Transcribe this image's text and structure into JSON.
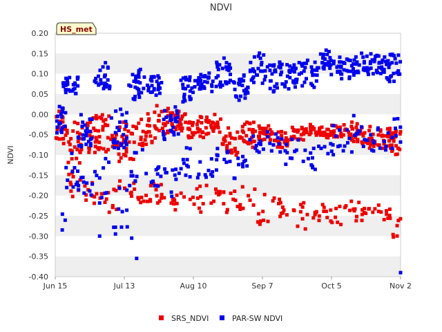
{
  "chart_data": {
    "type": "scatter",
    "title": "NDVI",
    "xlabel": "",
    "ylabel": "NDVI",
    "badge": "HS_met",
    "ylim": [
      -0.4,
      0.2
    ],
    "yticks": [
      0.2,
      0.15,
      0.1,
      0.05,
      0.0,
      -0.05,
      -0.1,
      -0.15,
      -0.2,
      -0.25,
      -0.3,
      -0.35,
      -0.4
    ],
    "ytick_labels": [
      "0.20",
      "0.15",
      "0.10",
      "0.05",
      "0.00",
      "-0.05",
      "-0.10",
      "-0.15",
      "-0.20",
      "-0.25",
      "-0.30",
      "-0.35",
      "-0.40"
    ],
    "xlim_days": [
      0,
      140
    ],
    "xticks_days": [
      0,
      28,
      56,
      84,
      112,
      140
    ],
    "xtick_labels": [
      "Jun 15",
      "Jul 13",
      "Aug 10",
      "Sep 7",
      "Oct 5",
      "Nov 2"
    ],
    "grid": "horizontal alternating bands",
    "legend_position": "bottom-center",
    "series": [
      {
        "name": "SRS_NDVI",
        "color": "#ee0000",
        "clusters": [
          {
            "day": 1,
            "upper": [
              0.02,
              -0.08
            ],
            "lower": null
          },
          {
            "day": 8,
            "upper": [
              0.0,
              -0.12
            ],
            "lower": [
              -0.14,
              -0.2
            ]
          },
          {
            "day": 15,
            "upper": [
              0.0,
              -0.1
            ],
            "lower": [
              -0.16,
              -0.22
            ]
          },
          {
            "day": 22,
            "upper": [
              0.0,
              -0.1
            ],
            "lower": [
              -0.18,
              -0.24
            ]
          },
          {
            "day": 29,
            "upper": [
              0.0,
              -0.12
            ],
            "lower": [
              -0.15,
              -0.21
            ]
          },
          {
            "day": 36,
            "upper": [
              0.0,
              -0.08
            ],
            "lower": [
              -0.18,
              -0.22
            ]
          },
          {
            "day": 43,
            "upper": [
              0.02,
              -0.06
            ],
            "lower": [
              -0.17,
              -0.22
            ]
          },
          {
            "day": 50,
            "upper": [
              0.01,
              -0.04
            ],
            "lower": [
              -0.18,
              -0.24
            ]
          },
          {
            "day": 57,
            "upper": [
              0.0,
              -0.06
            ],
            "lower": [
              -0.16,
              -0.24
            ]
          },
          {
            "day": 64,
            "upper": [
              0.0,
              -0.05
            ],
            "lower": [
              -0.16,
              -0.22
            ]
          },
          {
            "day": 71,
            "upper": [
              -0.02,
              -0.1
            ],
            "lower": [
              -0.18,
              -0.24
            ]
          },
          {
            "day": 78,
            "upper": [
              -0.02,
              -0.08
            ],
            "lower": [
              -0.18,
              -0.24
            ]
          },
          {
            "day": 85,
            "upper": [
              -0.03,
              -0.06
            ],
            "lower": [
              -0.2,
              -0.27
            ]
          },
          {
            "day": 92,
            "upper": [
              -0.04,
              -0.08
            ],
            "lower": [
              -0.2,
              -0.26
            ]
          },
          {
            "day": 99,
            "upper": [
              -0.03,
              -0.06
            ],
            "lower": [
              -0.22,
              -0.28
            ]
          },
          {
            "day": 106,
            "upper": [
              -0.03,
              -0.05
            ],
            "lower": [
              -0.22,
              -0.26
            ]
          },
          {
            "day": 113,
            "upper": [
              -0.03,
              -0.06
            ],
            "lower": [
              -0.22,
              -0.27
            ]
          },
          {
            "day": 120,
            "upper": [
              -0.02,
              -0.07
            ],
            "lower": [
              -0.2,
              -0.26
            ]
          },
          {
            "day": 127,
            "upper": [
              -0.03,
              -0.08
            ],
            "lower": [
              -0.22,
              -0.27
            ]
          },
          {
            "day": 134,
            "upper": [
              -0.03,
              -0.08
            ],
            "lower": [
              -0.22,
              -0.26
            ]
          },
          {
            "day": 139,
            "upper": [
              -0.04,
              -0.1
            ],
            "lower": [
              -0.24,
              -0.3
            ]
          }
        ]
      },
      {
        "name": "PAR-SW NDVI",
        "color": "#0000ee",
        "clusters": [
          {
            "day": 1,
            "upper": [
              0.02,
              -0.05
            ],
            "lower": [
              -0.22,
              -0.28
            ]
          },
          {
            "day": 6,
            "upper": [
              0.1,
              0.05
            ],
            "lower": [
              -0.1,
              -0.18
            ]
          },
          {
            "day": 12,
            "upper": [
              0.01,
              -0.08
            ],
            "lower": [
              -0.12,
              -0.2
            ]
          },
          {
            "day": 19,
            "upper": [
              0.13,
              0.06
            ],
            "lower": [
              -0.1,
              -0.22
            ]
          },
          {
            "day": 26,
            "upper": [
              0.02,
              -0.08
            ],
            "lower": [
              -0.14,
              -0.3
            ]
          },
          {
            "day": 33,
            "upper": [
              0.11,
              0.04
            ],
            "lower": [
              -0.08,
              -0.2
            ]
          },
          {
            "day": 40,
            "upper": [
              0.1,
              0.05
            ],
            "lower": [
              -0.1,
              -0.18
            ]
          },
          {
            "day": 47,
            "upper": [
              0.02,
              -0.06
            ],
            "lower": [
              -0.12,
              -0.2
            ]
          },
          {
            "day": 54,
            "upper": [
              0.1,
              0.03
            ],
            "lower": [
              -0.08,
              -0.16
            ]
          },
          {
            "day": 61,
            "upper": [
              0.11,
              0.06
            ],
            "lower": [
              -0.1,
              -0.18
            ]
          },
          {
            "day": 68,
            "upper": [
              0.14,
              0.06
            ],
            "lower": [
              -0.05,
              -0.14
            ]
          },
          {
            "day": 75,
            "upper": [
              0.1,
              0.04
            ],
            "lower": [
              -0.08,
              -0.16
            ]
          },
          {
            "day": 82,
            "upper": [
              0.15,
              0.08
            ],
            "lower": [
              -0.04,
              -0.1
            ]
          },
          {
            "day": 89,
            "upper": [
              0.13,
              0.06
            ],
            "lower": [
              -0.04,
              -0.1
            ]
          },
          {
            "day": 96,
            "upper": [
              0.14,
              0.06
            ],
            "lower": [
              -0.05,
              -0.12
            ]
          },
          {
            "day": 103,
            "upper": [
              0.13,
              0.07
            ],
            "lower": [
              -0.08,
              -0.14
            ]
          },
          {
            "day": 110,
            "upper": [
              0.16,
              0.1
            ],
            "lower": [
              -0.02,
              -0.1
            ]
          },
          {
            "day": 117,
            "upper": [
              0.14,
              0.08
            ],
            "lower": [
              -0.03,
              -0.1
            ]
          },
          {
            "day": 124,
            "upper": [
              0.15,
              0.1
            ],
            "lower": [
              0.0,
              -0.08
            ]
          },
          {
            "day": 131,
            "upper": [
              0.15,
              0.1
            ],
            "lower": [
              -0.03,
              -0.1
            ]
          },
          {
            "day": 137,
            "upper": [
              0.16,
              0.08
            ],
            "lower": [
              0.0,
              -0.1
            ]
          }
        ],
        "outliers": [
          {
            "day": 18,
            "value": -0.3
          },
          {
            "day": 31,
            "value": -0.305
          },
          {
            "day": 33,
            "value": -0.355
          },
          {
            "day": 140,
            "value": -0.39
          }
        ]
      }
    ],
    "legend": [
      {
        "name": "SRS_NDVI",
        "color": "#ee0000"
      },
      {
        "name": "PAR-SW NDVI",
        "color": "#0000ee"
      }
    ]
  }
}
